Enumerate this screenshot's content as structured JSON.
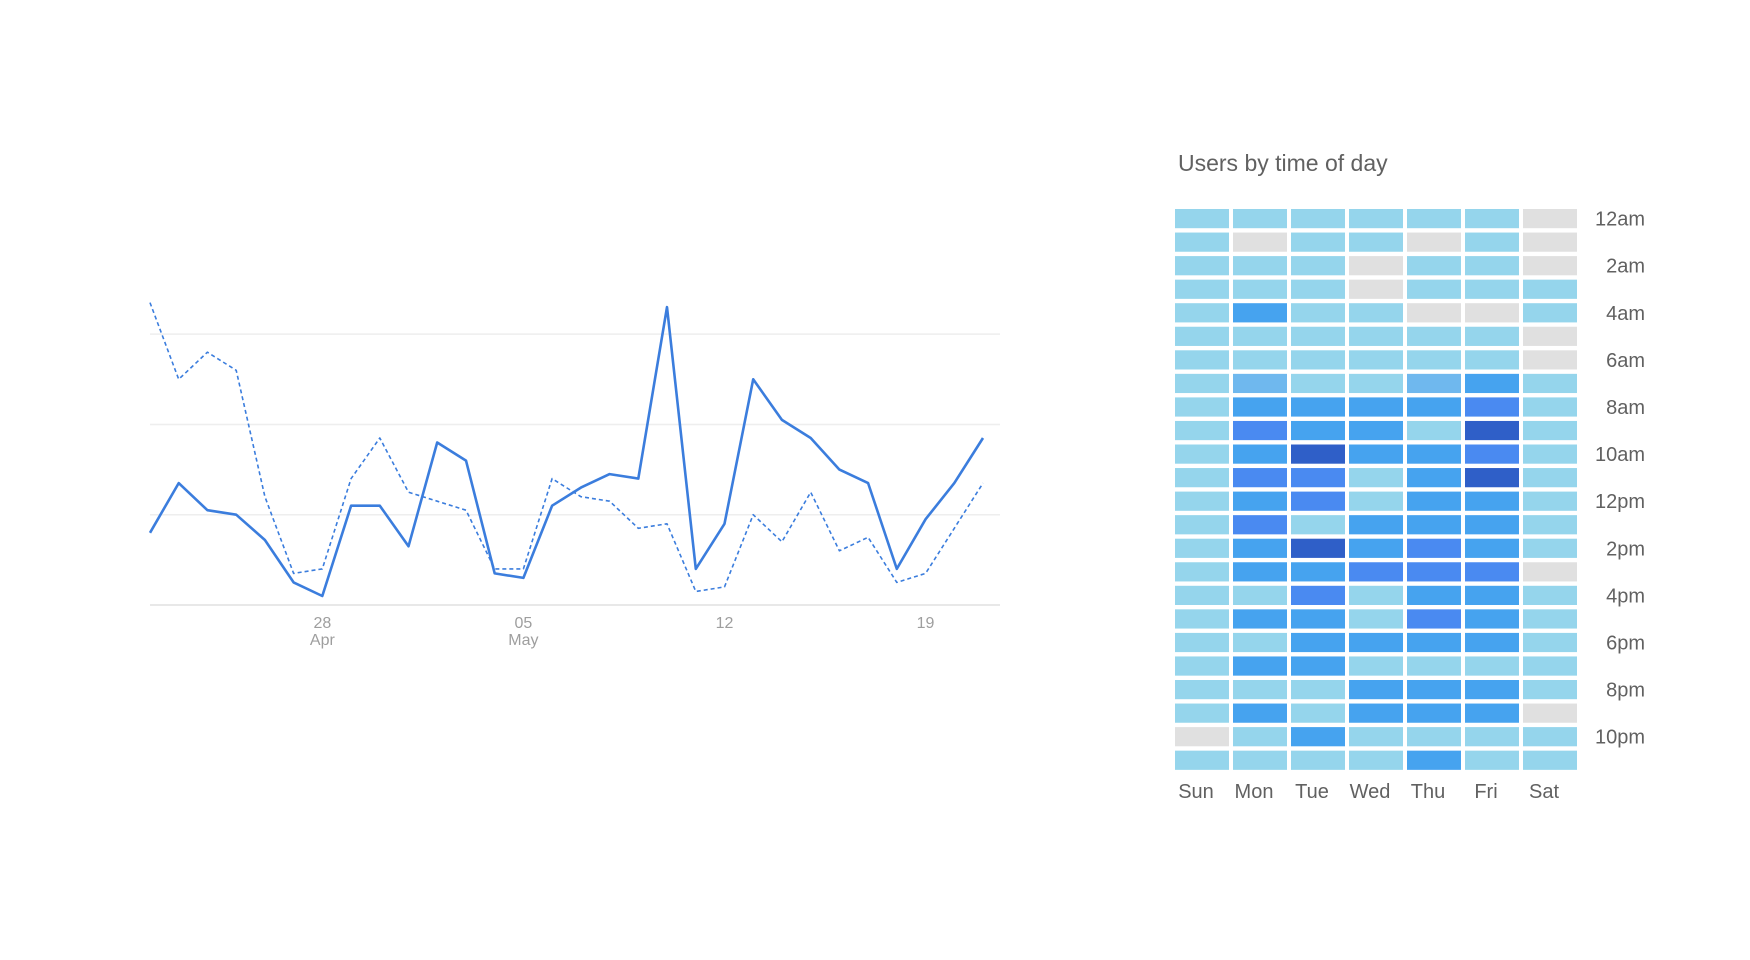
{
  "chart_data": [
    {
      "type": "line",
      "x_tick_labels": [
        {
          "day": "28",
          "month": "Apr"
        },
        {
          "day": "05",
          "month": "May"
        },
        {
          "day": "12",
          "month": ""
        },
        {
          "day": "19",
          "month": ""
        }
      ],
      "x": [
        "2019-04-22",
        "2019-04-23",
        "2019-04-24",
        "2019-04-25",
        "2019-04-26",
        "2019-04-27",
        "2019-04-28",
        "2019-04-29",
        "2019-04-30",
        "2019-05-01",
        "2019-05-02",
        "2019-05-03",
        "2019-05-04",
        "2019-05-05",
        "2019-05-06",
        "2019-05-07",
        "2019-05-08",
        "2019-05-09",
        "2019-05-10",
        "2019-05-11",
        "2019-05-12",
        "2019-05-13",
        "2019-05-14",
        "2019-05-15",
        "2019-05-16",
        "2019-05-17",
        "2019-05-18",
        "2019-05-19",
        "2019-05-20",
        "2019-05-21"
      ],
      "series": [
        {
          "style": "solid",
          "color": "#3b7ddd",
          "values": [
            0.8,
            1.35,
            1.05,
            1.0,
            0.72,
            0.25,
            0.1,
            1.1,
            1.1,
            0.65,
            1.8,
            1.6,
            0.35,
            0.3,
            1.1,
            1.3,
            1.45,
            1.4,
            3.3,
            0.4,
            0.9,
            2.5,
            2.05,
            1.85,
            1.5,
            1.35,
            0.4,
            0.95,
            1.35,
            1.85
          ]
        },
        {
          "style": "dashed",
          "color": "#3b7ddd",
          "values": [
            3.35,
            2.5,
            2.8,
            2.6,
            1.2,
            0.35,
            0.4,
            1.4,
            1.85,
            1.25,
            1.15,
            1.05,
            0.4,
            0.4,
            1.4,
            1.2,
            1.15,
            0.85,
            0.9,
            0.15,
            0.2,
            1.0,
            0.7,
            1.25,
            0.6,
            0.75,
            0.25,
            0.35,
            0.85,
            1.35
          ]
        }
      ],
      "ylim": [
        0,
        3.6
      ],
      "gridlines": [
        1,
        2,
        3
      ],
      "grid": true,
      "legend": "none"
    },
    {
      "type": "heatmap",
      "title": "Users by time of day",
      "columns": [
        "Sun",
        "Mon",
        "Tue",
        "Wed",
        "Thu",
        "Fri",
        "Sat"
      ],
      "row_labels": [
        "12am",
        "",
        "2am",
        "",
        "4am",
        "",
        "6am",
        "",
        "8am",
        "",
        "10am",
        "",
        "12pm",
        "",
        "2pm",
        "",
        "4pm",
        "",
        "6pm",
        "",
        "8pm",
        "",
        "10pm",
        ""
      ],
      "levels": [
        [
          1,
          1,
          1,
          1,
          1,
          1,
          0
        ],
        [
          1,
          0,
          1,
          1,
          0,
          1,
          0
        ],
        [
          1,
          1,
          1,
          0,
          1,
          1,
          0
        ],
        [
          1,
          1,
          1,
          0,
          1,
          1,
          1
        ],
        [
          1,
          3,
          1,
          1,
          0,
          0,
          1
        ],
        [
          1,
          1,
          1,
          1,
          1,
          1,
          0
        ],
        [
          1,
          1,
          1,
          1,
          1,
          1,
          0
        ],
        [
          1,
          2,
          1,
          1,
          2,
          3,
          1
        ],
        [
          1,
          3,
          3,
          3,
          3,
          4,
          1
        ],
        [
          1,
          4,
          3,
          3,
          1,
          5,
          1
        ],
        [
          1,
          3,
          5,
          3,
          3,
          4,
          1
        ],
        [
          1,
          4,
          4,
          1,
          3,
          5,
          1
        ],
        [
          1,
          3,
          4,
          1,
          3,
          3,
          1
        ],
        [
          1,
          4,
          1,
          3,
          3,
          3,
          1
        ],
        [
          1,
          3,
          5,
          3,
          4,
          3,
          1
        ],
        [
          1,
          3,
          3,
          4,
          4,
          4,
          0
        ],
        [
          1,
          1,
          4,
          1,
          3,
          3,
          1
        ],
        [
          1,
          3,
          3,
          1,
          4,
          3,
          1
        ],
        [
          1,
          1,
          3,
          3,
          3,
          3,
          1
        ],
        [
          1,
          3,
          3,
          1,
          1,
          1,
          1
        ],
        [
          1,
          1,
          1,
          3,
          3,
          3,
          1
        ],
        [
          1,
          3,
          1,
          3,
          3,
          3,
          0
        ],
        [
          0,
          1,
          3,
          1,
          1,
          1,
          1
        ],
        [
          1,
          1,
          1,
          1,
          3,
          1,
          1
        ]
      ],
      "colors": [
        "#e0e0e0",
        "#95d5ec",
        "#6fb8ee",
        "#46a3ef",
        "#4a8af1",
        "#2f5fc8"
      ]
    }
  ]
}
